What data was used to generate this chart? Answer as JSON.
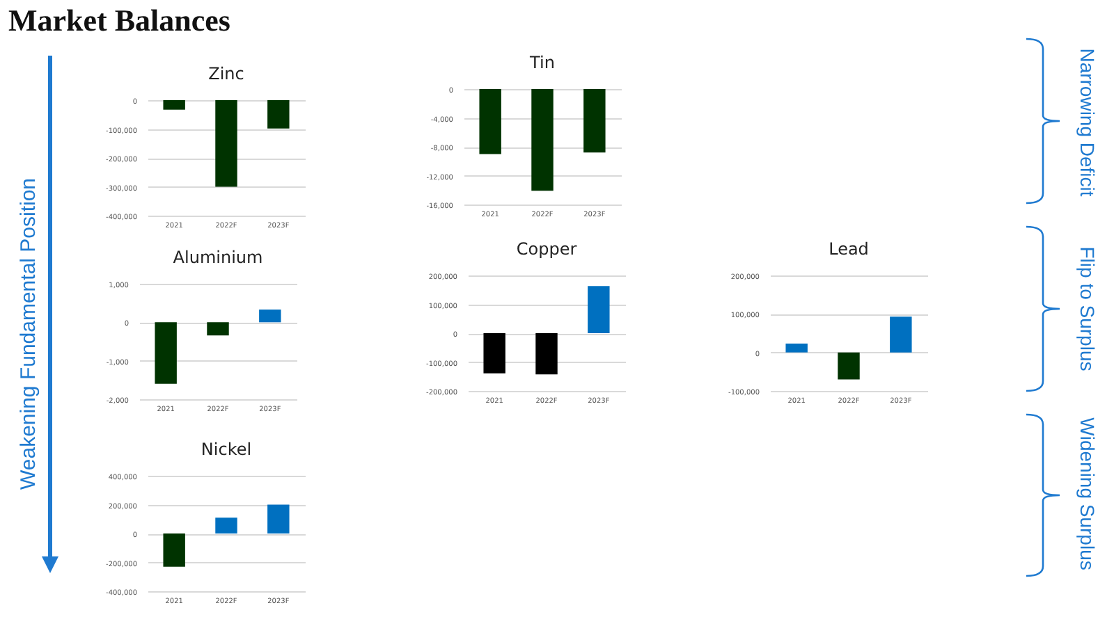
{
  "chart_data": [
    {
      "type": "other",
      "title": "Market Balances",
      "annotations": [
        "Weakening Fundamental Position",
        "Narrowing Deficit",
        "Flip to Surplus",
        "Widening Surplus"
      ]
    },
    {
      "type": "bar",
      "title": "Zinc",
      "categories": [
        "2021",
        "2022F",
        "2023F"
      ],
      "values": [
        -33000,
        -300000,
        -98000
      ],
      "colors": [
        "#003300",
        "#003300",
        "#003300"
      ],
      "ylim": [
        -400000,
        0
      ],
      "yticks": [
        {
          "value": -400000,
          "label": "-400,000"
        },
        {
          "value": -300000,
          "label": "-300,000"
        },
        {
          "value": -200000,
          "label": "-200,000"
        },
        {
          "value": -100000,
          "label": "-100,000"
        },
        {
          "value": 0,
          "label": "0"
        }
      ],
      "grid": "y"
    },
    {
      "type": "bar",
      "title": "Tin",
      "categories": [
        "2021",
        "2022F",
        "2023F"
      ],
      "values": [
        -9000,
        -14100,
        -8800
      ],
      "colors": [
        "#003300",
        "#003300",
        "#003300"
      ],
      "ylim": [
        -16000,
        0
      ],
      "yticks": [
        {
          "value": -16000,
          "label": "-16,000"
        },
        {
          "value": -12000,
          "label": "-12,000"
        },
        {
          "value": -8000,
          "label": "-8,000"
        },
        {
          "value": -4000,
          "label": "-4,000"
        },
        {
          "value": 0,
          "label": "0"
        }
      ],
      "grid": "y"
    },
    {
      "type": "bar",
      "title": "Aluminium",
      "categories": [
        "2021",
        "2022F",
        "2023F"
      ],
      "values": [
        -1600,
        -340,
        330
      ],
      "colors": [
        "#003300",
        "#003300",
        "#0070c0"
      ],
      "ylim": [
        -2000,
        1000
      ],
      "yticks": [
        {
          "value": -2000,
          "label": "-2,000"
        },
        {
          "value": -1000,
          "label": "-1,000"
        },
        {
          "value": 0,
          "label": "0"
        },
        {
          "value": 1000,
          "label": "1,000"
        }
      ],
      "grid": "y"
    },
    {
      "type": "bar",
      "title": "Copper",
      "categories": [
        "2021",
        "2022F",
        "2023F"
      ],
      "values": [
        -139000,
        -143000,
        163000
      ],
      "colors": [
        "#000000",
        "#000000",
        "#0070c0"
      ],
      "ylim": [
        -200000,
        200000
      ],
      "yticks": [
        {
          "value": -200000,
          "label": "-200,000"
        },
        {
          "value": -100000,
          "label": "-100,000"
        },
        {
          "value": 0,
          "label": "0"
        },
        {
          "value": 100000,
          "label": "100,000"
        },
        {
          "value": 200000,
          "label": "200,000"
        }
      ],
      "grid": "y"
    },
    {
      "type": "bar",
      "title": "Lead",
      "categories": [
        "2021",
        "2022F",
        "2023F"
      ],
      "values": [
        23000,
        -70000,
        93000
      ],
      "colors": [
        "#0070c0",
        "#003300",
        "#0070c0"
      ],
      "ylim": [
        -100000,
        200000
      ],
      "yticks": [
        {
          "value": -100000,
          "label": "-100,000"
        },
        {
          "value": 0,
          "label": "0"
        },
        {
          "value": 100000,
          "label": "100,000"
        },
        {
          "value": 200000,
          "label": "200,000"
        }
      ],
      "grid": "y"
    },
    {
      "type": "bar",
      "title": "Nickel",
      "categories": [
        "2021",
        "2022F",
        "2023F"
      ],
      "values": [
        -230000,
        110000,
        200000
      ],
      "colors": [
        "#003300",
        "#0070c0",
        "#0070c0"
      ],
      "ylim": [
        -400000,
        400000
      ],
      "yticks": [
        {
          "value": -400000,
          "label": "-400,000"
        },
        {
          "value": -200000,
          "label": "-200,000"
        },
        {
          "value": 0,
          "label": "0"
        },
        {
          "value": 200000,
          "label": "200,000"
        },
        {
          "value": 400000,
          "label": "400,000"
        }
      ],
      "grid": "y"
    }
  ]
}
